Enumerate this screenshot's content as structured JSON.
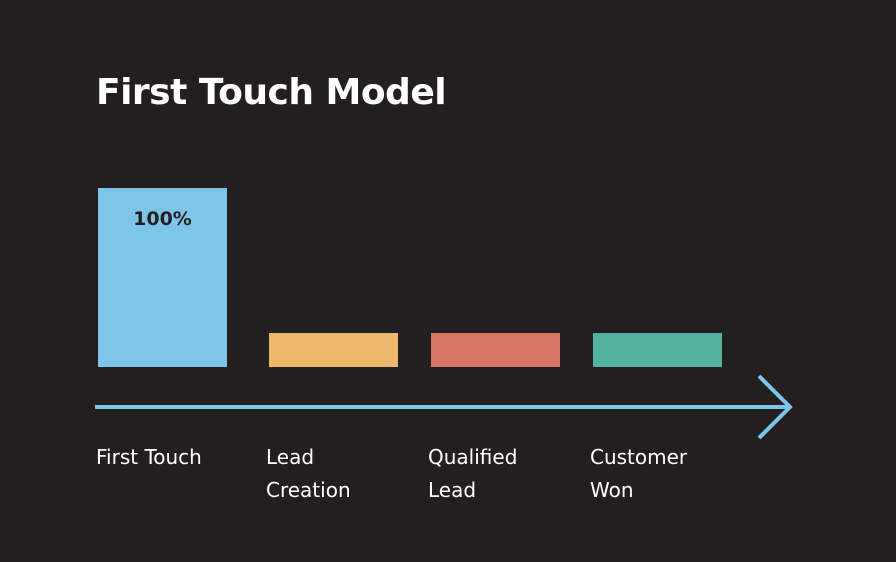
{
  "chart_data": {
    "type": "bar",
    "title": "First Touch Model",
    "categories": [
      "First Touch",
      "Lead\nCreation",
      "Qualified\nLead",
      "Customer\nWon"
    ],
    "values": [
      100,
      0,
      0,
      0
    ],
    "data_labels": [
      "100%",
      "",
      "",
      ""
    ],
    "colors": [
      "#7dc6ea",
      "#ecb96c",
      "#d57564",
      "#55b2a1"
    ],
    "axis_color": "#7dc6ea",
    "ylim": [
      0,
      100
    ],
    "grid": false,
    "legend": "none",
    "x_axis_arrow": true
  },
  "colors": {
    "background": "#231f20",
    "text": "#ffffff",
    "label_on_bar": "#231f20"
  }
}
